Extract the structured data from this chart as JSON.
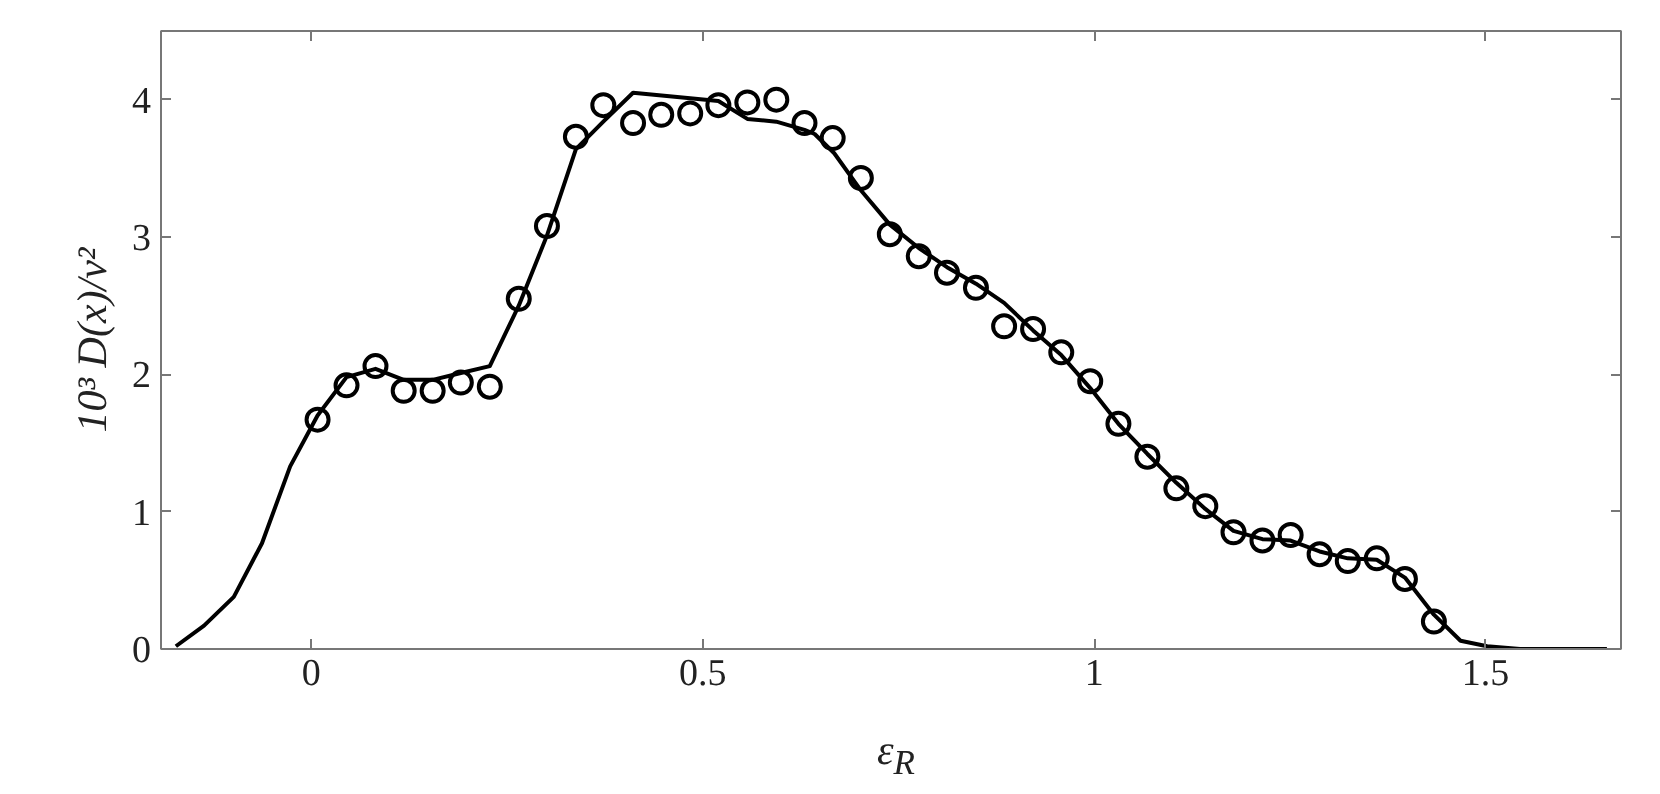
{
  "chart_data": {
    "type": "line",
    "xlabel": "ε$_{R}$",
    "ylabel": "10³ D(x)/v²",
    "xlim": [
      -0.192,
      1.673
    ],
    "ylim": [
      0,
      4.5
    ],
    "xticks": [
      0,
      0.5,
      1,
      1.5
    ],
    "yticks": [
      0,
      1,
      2,
      3,
      4
    ],
    "grid": false,
    "series": [
      {
        "color": "#000000",
        "marker": "none",
        "line_style": "solid",
        "x": [
          -0.173,
          -0.137,
          -0.099,
          -0.063,
          -0.027,
          0.008,
          0.045,
          0.082,
          0.118,
          0.155,
          0.191,
          0.228,
          0.265,
          0.301,
          0.338,
          0.373,
          0.411,
          0.484,
          0.52,
          0.557,
          0.594,
          0.63,
          0.643,
          0.668,
          0.702,
          0.739,
          0.776,
          0.812,
          0.849,
          0.885,
          0.922,
          0.958,
          0.995,
          1.031,
          1.068,
          1.105,
          1.142,
          1.178,
          1.215,
          1.251,
          1.288,
          1.324,
          1.361,
          1.397,
          1.434,
          1.468,
          1.502,
          1.544,
          1.655
        ],
        "values": [
          0.02,
          0.17,
          0.38,
          0.77,
          1.33,
          1.7,
          1.98,
          2.04,
          1.96,
          1.96,
          2.01,
          2.06,
          2.5,
          3.01,
          3.64,
          3.84,
          4.05,
          4.01,
          3.99,
          3.86,
          3.84,
          3.78,
          3.75,
          3.61,
          3.34,
          3.09,
          2.92,
          2.78,
          2.66,
          2.52,
          2.32,
          2.14,
          1.9,
          1.64,
          1.42,
          1.21,
          1.02,
          0.86,
          0.8,
          0.79,
          0.71,
          0.66,
          0.65,
          0.52,
          0.25,
          0.06,
          0.02,
          0.0,
          0.0
        ]
      },
      {
        "type": "scatter",
        "color": "#000000",
        "marker": "circle",
        "x": [
          0.008,
          0.045,
          0.082,
          0.118,
          0.155,
          0.191,
          0.228,
          0.265,
          0.301,
          0.338,
          0.373,
          0.411,
          0.447,
          0.484,
          0.52,
          0.557,
          0.594,
          0.63,
          0.666,
          0.702,
          0.739,
          0.776,
          0.812,
          0.849,
          0.885,
          0.922,
          0.958,
          0.995,
          1.031,
          1.068,
          1.105,
          1.142,
          1.178,
          1.215,
          1.251,
          1.288,
          1.324,
          1.361,
          1.397,
          1.434
        ],
        "values": [
          1.67,
          1.92,
          2.06,
          1.88,
          1.88,
          1.94,
          1.91,
          2.55,
          3.08,
          3.73,
          3.96,
          3.83,
          3.89,
          3.9,
          3.96,
          3.98,
          4.0,
          3.83,
          3.72,
          3.43,
          3.02,
          2.86,
          2.74,
          2.63,
          2.35,
          2.33,
          2.16,
          1.95,
          1.64,
          1.4,
          1.17,
          1.04,
          0.85,
          0.79,
          0.83,
          0.69,
          0.64,
          0.66,
          0.51,
          0.2
        ]
      }
    ]
  }
}
